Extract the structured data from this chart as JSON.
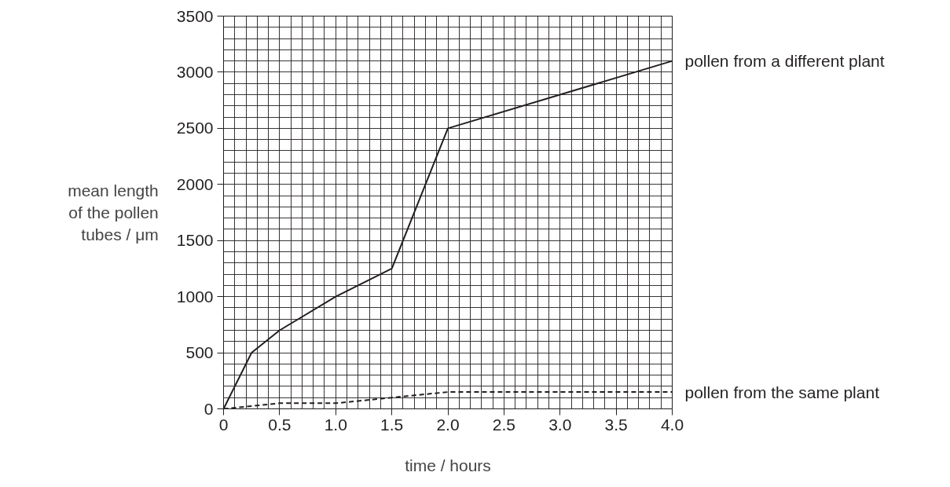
{
  "chart_data": {
    "type": "line",
    "xlabel": "time / hours",
    "ylabel": "mean length\nof the pollen\ntubes / μm",
    "xlim": [
      0,
      4.0
    ],
    "ylim": [
      0,
      3500
    ],
    "xticks": [
      {
        "value": 0,
        "label": "0"
      },
      0.5,
      {
        "value": 1,
        "label": "1.0"
      },
      1.5,
      {
        "value": 2,
        "label": "2.0"
      },
      2.5,
      {
        "value": 3,
        "label": "3.0"
      },
      3.5,
      {
        "value": 4,
        "label": "4.0"
      }
    ],
    "yticks": [
      0,
      500,
      1000,
      1500,
      2000,
      2500,
      3000,
      3500
    ],
    "grid": true,
    "marker": "none",
    "series": [
      {
        "name": "pollen from a different plant",
        "color": "#231f20",
        "line_style": "solid",
        "x": [
          0,
          0.25,
          0.5,
          1.0,
          1.5,
          2.0,
          4.0
        ],
        "values": [
          0,
          500,
          700,
          1000,
          1250,
          2500,
          3100
        ]
      },
      {
        "name": "pollen from the same plant",
        "color": "#231f20",
        "line_style": "dashed",
        "x": [
          0,
          0.5,
          1.0,
          1.5,
          2.0,
          4.0
        ],
        "values": [
          0,
          50,
          50,
          100,
          150,
          150
        ]
      }
    ]
  }
}
